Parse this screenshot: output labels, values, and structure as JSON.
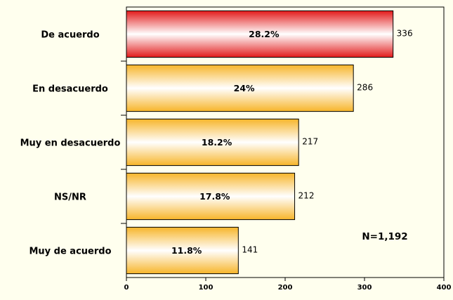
{
  "chart_data": {
    "type": "bar",
    "orientation": "horizontal",
    "categories": [
      "De acuerdo",
      "En desacuerdo",
      "Muy en desacuerdo",
      "NS/NR",
      "Muy de acuerdo"
    ],
    "values": [
      336,
      286,
      217,
      212,
      141
    ],
    "percent_labels": [
      "28.2%",
      "24%",
      "18.2%",
      "17.8%",
      "11.8%"
    ],
    "xlim": [
      0,
      400
    ],
    "xticks": [
      0,
      100,
      200,
      300,
      400
    ],
    "annotation": "N=1,192",
    "grid": false,
    "legend": "none",
    "colors": {
      "highlight": "#e82020",
      "bar": "#f8c440",
      "bar_light": "#ffffff",
      "plot_background": "#ffffee"
    }
  }
}
